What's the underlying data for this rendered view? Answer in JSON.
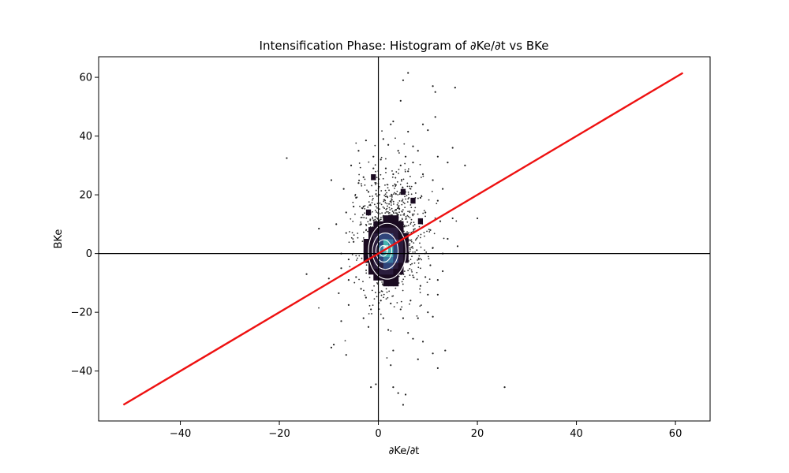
{
  "chart_data": {
    "type": "scatter",
    "title": "Intensification Phase: Histogram of ∂Ke/∂t vs BKe",
    "xlabel": "∂Ke/∂t",
    "ylabel": "BKe",
    "xlim": [
      -56.5,
      67
    ],
    "ylim": [
      -57,
      67
    ],
    "x_ticks": [
      -40,
      -20,
      0,
      20,
      40,
      60
    ],
    "y_ticks": [
      -40,
      -20,
      0,
      20,
      40,
      60
    ],
    "x_tick_labels": [
      "−40",
      "−20",
      "0",
      "20",
      "40",
      "60"
    ],
    "y_tick_labels": [
      "−40",
      "−20",
      "0",
      "20",
      "40",
      "60"
    ],
    "grid": false,
    "reference_lines": {
      "x": 0,
      "y": 0
    },
    "fit_line": {
      "x": [
        -51.5,
        61.5
      ],
      "y": [
        -51.5,
        61.5
      ],
      "color": "#ee1111"
    },
    "histogram_core": {
      "center": [
        1,
        1
      ],
      "colors": [
        "#1a0b21",
        "#2b1d3d",
        "#30447a",
        "#3a7aa0",
        "#46b3b0",
        "#bfe6e0"
      ]
    },
    "contour_levels": [
      {
        "center": [
          1.8,
          0.8
        ],
        "rx": 3.8,
        "ry": 9.5
      },
      {
        "center": [
          1.4,
          0.8
        ],
        "rx": 2.6,
        "ry": 6.2
      },
      {
        "center": [
          1.1,
          0.9
        ],
        "rx": 1.6,
        "ry": 3.8
      },
      {
        "center": [
          1.0,
          0.9
        ],
        "rx": 0.8,
        "ry": 1.8
      }
    ],
    "outlier_points": [
      [
        -18.5,
        32.5
      ],
      [
        -9.5,
        25
      ],
      [
        -12,
        8.5
      ],
      [
        -14.5,
        -7
      ],
      [
        -9.5,
        -32
      ],
      [
        -9,
        -31
      ],
      [
        -6.5,
        -34.5
      ],
      [
        -7.5,
        -23
      ],
      [
        -6,
        -17.5
      ],
      [
        -8,
        -13.5
      ],
      [
        -10,
        -8.5
      ],
      [
        -7.5,
        -5
      ],
      [
        -8.5,
        10
      ],
      [
        -6.5,
        14
      ],
      [
        -7,
        22
      ],
      [
        -5.5,
        30
      ],
      [
        -2.5,
        38.5
      ],
      [
        -4,
        35
      ],
      [
        -2,
        -25
      ],
      [
        -1.5,
        -45.5
      ],
      [
        -0.5,
        -44.5
      ],
      [
        1,
        -22
      ],
      [
        2,
        -26
      ],
      [
        3,
        -33
      ],
      [
        2.5,
        -38
      ],
      [
        3,
        -45.5
      ],
      [
        4,
        -47.5
      ],
      [
        5.5,
        -48
      ],
      [
        5,
        -51.5
      ],
      [
        8,
        -36
      ],
      [
        7,
        -29
      ],
      [
        6,
        -27
      ],
      [
        9,
        -30
      ],
      [
        10,
        -20
      ],
      [
        11,
        -34
      ],
      [
        12,
        -39
      ],
      [
        13.5,
        -33
      ],
      [
        11,
        -21.5
      ],
      [
        10,
        -14
      ],
      [
        12,
        -14
      ],
      [
        13,
        -6
      ],
      [
        14,
        5
      ],
      [
        16,
        2.5
      ],
      [
        15,
        12
      ],
      [
        17.5,
        30
      ],
      [
        20,
        12
      ],
      [
        25.5,
        -45.5
      ],
      [
        15,
        36
      ],
      [
        14,
        31
      ],
      [
        12,
        33
      ],
      [
        11.5,
        46.5
      ],
      [
        11,
        57
      ],
      [
        15.5,
        56.5
      ],
      [
        11.5,
        55
      ],
      [
        10,
        42
      ],
      [
        9,
        44
      ],
      [
        7,
        36.5
      ],
      [
        6,
        41.5
      ],
      [
        5.5,
        33
      ],
      [
        5,
        59
      ],
      [
        6,
        61.5
      ],
      [
        3,
        45
      ],
      [
        2.5,
        44
      ],
      [
        4.5,
        52
      ],
      [
        2,
        37
      ],
      [
        0.5,
        32
      ],
      [
        -1,
        29
      ],
      [
        -3,
        26
      ],
      [
        -4.5,
        19
      ],
      [
        -5,
        16
      ],
      [
        -3.5,
        10
      ],
      [
        -5,
        4
      ],
      [
        -6,
        -2
      ],
      [
        -4.5,
        -8
      ],
      [
        -3.5,
        -12
      ],
      [
        -2.5,
        -15
      ],
      [
        -1.5,
        -19
      ],
      [
        0.5,
        -16
      ],
      [
        2.5,
        -17
      ],
      [
        4.5,
        -19
      ],
      [
        6.5,
        -16
      ],
      [
        8.5,
        -11
      ],
      [
        9.5,
        -8
      ],
      [
        10.5,
        -4
      ],
      [
        11,
        2
      ],
      [
        10.5,
        8
      ],
      [
        9.5,
        14
      ],
      [
        8.5,
        19
      ],
      [
        7.5,
        24
      ],
      [
        6,
        28
      ],
      [
        4.5,
        30
      ],
      [
        3,
        27
      ],
      [
        1.5,
        29
      ],
      [
        -0.5,
        24
      ],
      [
        -2,
        21
      ],
      [
        -3,
        16
      ],
      [
        13,
        22
      ],
      [
        12,
        18
      ],
      [
        9,
        27
      ],
      [
        7,
        31
      ],
      [
        4,
        35
      ],
      [
        -1,
        33
      ],
      [
        -6.5,
        7
      ],
      [
        -7.5,
        0
      ],
      [
        -6,
        -9
      ],
      [
        -3,
        -22
      ],
      [
        5,
        -22
      ],
      [
        8,
        -22
      ],
      [
        12,
        -9
      ],
      [
        13,
        0
      ],
      [
        12.5,
        11
      ],
      [
        11,
        25
      ],
      [
        8,
        35
      ],
      [
        1,
        39
      ],
      [
        -4,
        24
      ]
    ]
  }
}
